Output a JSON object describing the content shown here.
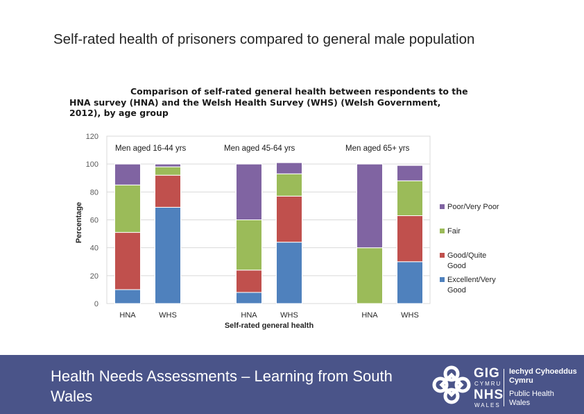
{
  "slide": {
    "title": "Self-rated health of prisoners compared to general male population",
    "footer": "Health Needs Assessments – Learning from South Wales"
  },
  "logo": {
    "gig": "GIG",
    "cymru": "CYMRU",
    "nhs": "NHS",
    "wales": "WALES",
    "iechyd": "Iechyd Cyhoeddus",
    "cymru2": "Cymru",
    "public_health": "Public Health",
    "wales2": "Wales"
  },
  "colors": {
    "excellent": "#4f81bd",
    "good": "#c0504d",
    "fair": "#9bbb59",
    "poor": "#8064a2",
    "footer": "#4a5489"
  },
  "chart_data": {
    "type": "bar",
    "stacked": true,
    "title_line1": "Comparison of self-rated general health between respondents to the",
    "title_line2": "HNA survey (HNA) and the Welsh Health Survey (WHS) (Welsh Government,",
    "title_line3": "2012), by age group",
    "xlabel": "Self-rated general health",
    "ylabel": "Percentage",
    "ylim": [
      0,
      120
    ],
    "yticks": [
      0,
      20,
      40,
      60,
      80,
      100,
      120
    ],
    "legend_position": "right",
    "groups": [
      {
        "label": "Men aged 16-44 yrs",
        "bars": [
          {
            "category": "HNA",
            "excellent": 10,
            "good": 41,
            "fair": 34,
            "poor": 15
          },
          {
            "category": "WHS",
            "excellent": 69,
            "good": 23,
            "fair": 6,
            "poor": 2
          }
        ]
      },
      {
        "label": "Men aged 45-64 yrs",
        "bars": [
          {
            "category": "HNA",
            "excellent": 8,
            "good": 16,
            "fair": 36,
            "poor": 40
          },
          {
            "category": "WHS",
            "excellent": 44,
            "good": 33,
            "fair": 16,
            "poor": 8
          }
        ]
      },
      {
        "label": "Men aged 65+ yrs",
        "bars": [
          {
            "category": "HNA",
            "excellent": 0,
            "good": 0,
            "fair": 40,
            "poor": 60
          },
          {
            "category": "WHS",
            "excellent": 30,
            "good": 33,
            "fair": 25,
            "poor": 11
          }
        ]
      }
    ],
    "legend": [
      {
        "key": "poor",
        "line1": "Poor/Very Poor",
        "line2": ""
      },
      {
        "key": "fair",
        "line1": "Fair",
        "line2": ""
      },
      {
        "key": "good",
        "line1": "Good/Quite",
        "line2": "Good"
      },
      {
        "key": "excellent",
        "line1": "Excellent/Very",
        "line2": "Good"
      }
    ]
  }
}
